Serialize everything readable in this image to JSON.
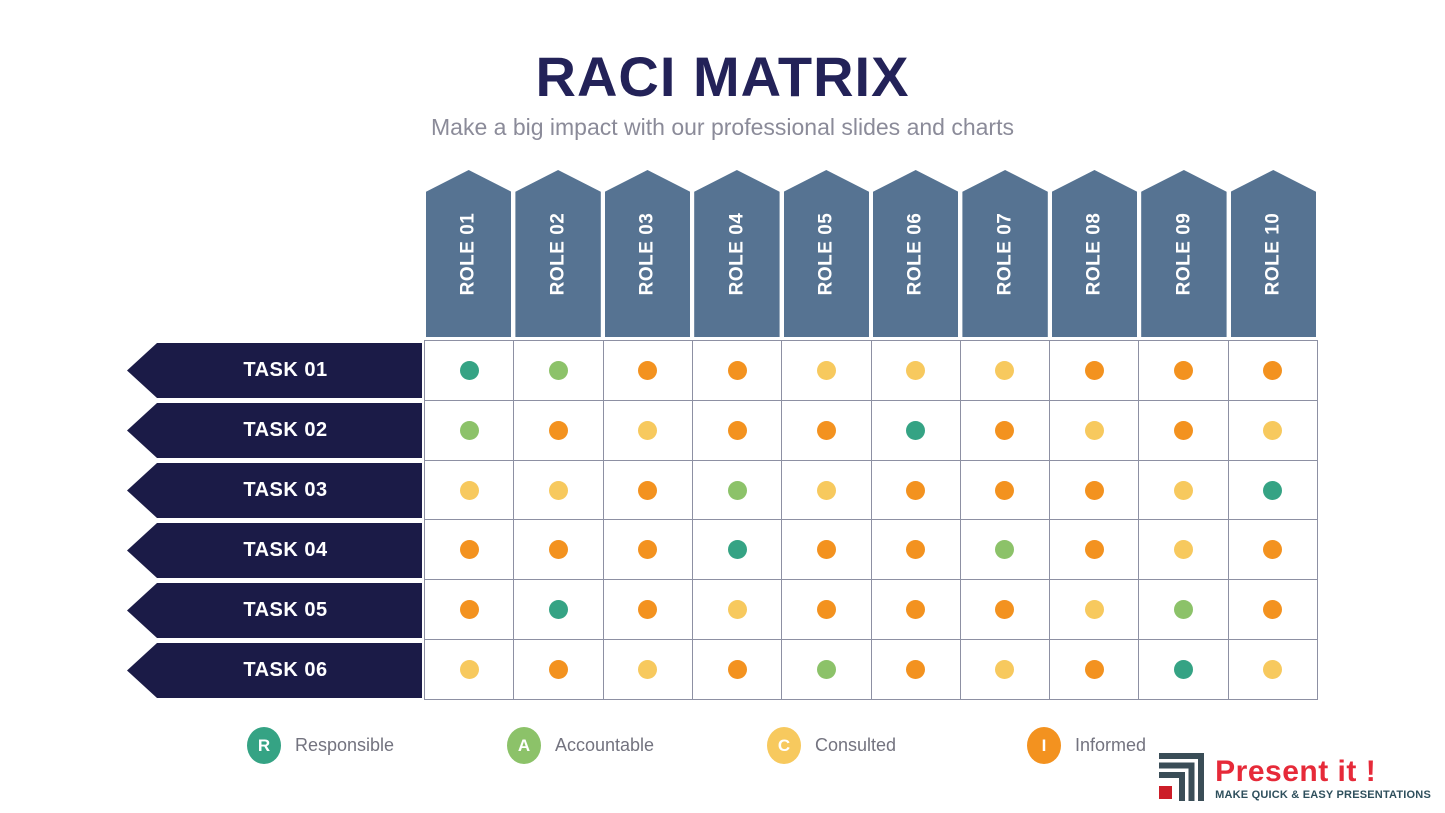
{
  "slide": {
    "title": "RACI MATRIX",
    "subtitle": "Make a big impact with our professional slides and charts"
  },
  "matrix": {
    "roles": [
      "ROLE 01",
      "ROLE 02",
      "ROLE 03",
      "ROLE 04",
      "ROLE 05",
      "ROLE 06",
      "ROLE 07",
      "ROLE 08",
      "ROLE 09",
      "ROLE 10"
    ],
    "tasks": [
      "TASK 01",
      "TASK 02",
      "TASK 03",
      "TASK 04",
      "TASK 05",
      "TASK 06"
    ],
    "assignments": [
      [
        "R",
        "A",
        "I",
        "I",
        "C",
        "C",
        "C",
        "I",
        "I",
        "I"
      ],
      [
        "A",
        "I",
        "C",
        "I",
        "I",
        "R",
        "I",
        "C",
        "I",
        "C"
      ],
      [
        "C",
        "C",
        "I",
        "A",
        "C",
        "I",
        "I",
        "I",
        "C",
        "R"
      ],
      [
        "I",
        "I",
        "I",
        "R",
        "I",
        "I",
        "A",
        "I",
        "C",
        "I"
      ],
      [
        "I",
        "R",
        "I",
        "C",
        "I",
        "I",
        "I",
        "C",
        "A",
        "I"
      ],
      [
        "C",
        "I",
        "C",
        "I",
        "A",
        "I",
        "C",
        "I",
        "R",
        "C"
      ]
    ]
  },
  "legend": [
    {
      "key": "R",
      "label": "Responsible",
      "color": "#35a384"
    },
    {
      "key": "A",
      "label": "Accountable",
      "color": "#8cc269"
    },
    {
      "key": "C",
      "label": "Consulted",
      "color": "#f7c95e"
    },
    {
      "key": "I",
      "label": "Informed",
      "color": "#f3921f"
    }
  ],
  "colors": {
    "title_navy": "#232258",
    "subtitle_gray": "#8b8b99",
    "role_header_slate": "#567392",
    "task_banner_navy": "#1b1b47",
    "grid_line": "#8d90a3",
    "legend_text": "#73737f",
    "logo_red": "#e62a39",
    "logo_slate": "#2e4f5c"
  },
  "logo": {
    "brand": "Present it !",
    "tagline": "MAKE QUICK & EASY PRESENTATIONS"
  },
  "chart_data": {
    "type": "table",
    "title": "RACI MATRIX",
    "subtitle": "Make a big impact with our professional slides and charts",
    "columns": [
      "ROLE 01",
      "ROLE 02",
      "ROLE 03",
      "ROLE 04",
      "ROLE 05",
      "ROLE 06",
      "ROLE 07",
      "ROLE 08",
      "ROLE 09",
      "ROLE 10"
    ],
    "rows": [
      "TASK 01",
      "TASK 02",
      "TASK 03",
      "TASK 04",
      "TASK 05",
      "TASK 06"
    ],
    "values": [
      [
        "R",
        "A",
        "I",
        "I",
        "C",
        "C",
        "C",
        "I",
        "I",
        "I"
      ],
      [
        "A",
        "I",
        "C",
        "I",
        "I",
        "R",
        "I",
        "C",
        "I",
        "C"
      ],
      [
        "C",
        "C",
        "I",
        "A",
        "C",
        "I",
        "I",
        "I",
        "C",
        "R"
      ],
      [
        "I",
        "I",
        "I",
        "R",
        "I",
        "I",
        "A",
        "I",
        "C",
        "I"
      ],
      [
        "I",
        "R",
        "I",
        "C",
        "I",
        "I",
        "I",
        "C",
        "A",
        "I"
      ],
      [
        "C",
        "I",
        "C",
        "I",
        "A",
        "I",
        "C",
        "I",
        "R",
        "C"
      ]
    ],
    "value_legend": {
      "R": "Responsible",
      "A": "Accountable",
      "C": "Consulted",
      "I": "Informed"
    },
    "value_colors": {
      "R": "#35a384",
      "A": "#8cc269",
      "C": "#f7c95e",
      "I": "#f3921f"
    },
    "legend_position": "bottom",
    "grid": true
  }
}
